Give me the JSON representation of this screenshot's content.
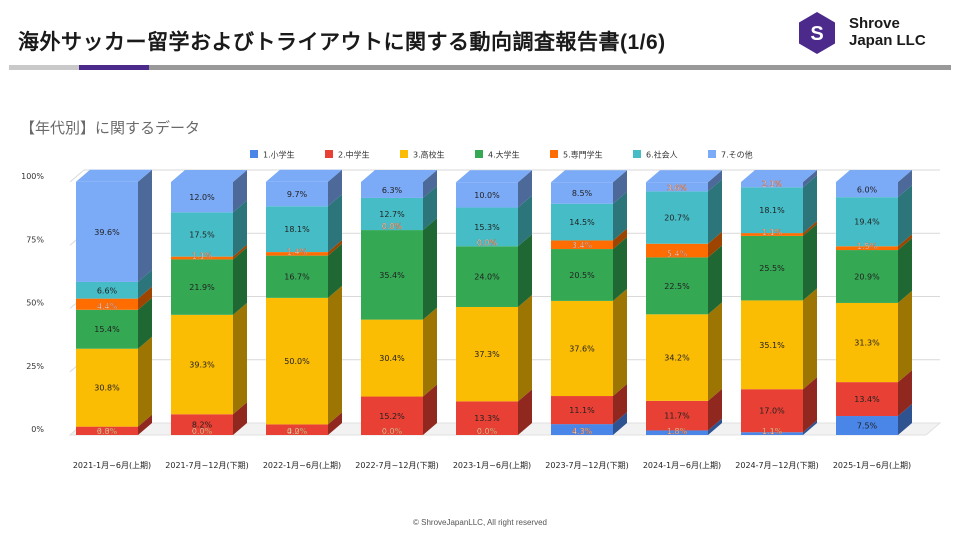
{
  "header": {
    "title": "海外サッカー留学およびトライアウトに関する動向調査報告書(1/6)",
    "logo_letter": "S",
    "logo_line1": "Shrove",
    "logo_line2": "Japan LLC"
  },
  "section_title": "【年代別】に関するデータ",
  "footer": "© ShroveJapanLLC, All right reserved",
  "colors": {
    "brand": "#4b2a8c",
    "rule_gray": "#c9c9c9",
    "rule_dark": "#999999",
    "grid": "#d9d9d9"
  },
  "chart_data": {
    "type": "bar",
    "stacked": true,
    "three_d": true,
    "categories": [
      "2021-1月~6月(上期)",
      "2021-7月~12月(下期)",
      "2022-1月~6月(上期)",
      "2022-7月~12月(下期)",
      "2023-1月~6月(上期)",
      "2023-7月~12月(下期)",
      "2024-1月~6月(上期)",
      "2024-7月~12月(下期)",
      "2025-1月~6月(上期)"
    ],
    "yticks": [
      "0%",
      "25%",
      "50%",
      "75%",
      "100%"
    ],
    "ylim": [
      0,
      100
    ],
    "legend_position": "top",
    "series": [
      {
        "name": "1.小学生",
        "color": "#4a86e8",
        "labels": [
          "0.0%",
          "0.0%",
          "0.0%",
          "0.0%",
          "0.0%",
          "4.3%",
          "1.8%",
          "1.1%",
          "7.5%"
        ],
        "values": [
          0.0,
          0.0,
          0.0,
          0.0,
          0.0,
          4.3,
          1.8,
          1.1,
          7.5
        ]
      },
      {
        "name": "2.中学生",
        "color": "#e84034",
        "labels": [
          "3.3%",
          "8.2%",
          "4.2%",
          "15.2%",
          "13.3%",
          "11.1%",
          "11.7%",
          "17.0%",
          "13.4%"
        ],
        "values": [
          3.3,
          8.2,
          4.2,
          15.2,
          13.3,
          11.1,
          11.7,
          17.0,
          13.4
        ]
      },
      {
        "name": "3.高校生",
        "color": "#fbbc04",
        "labels": [
          "30.8%",
          "39.3%",
          "50.0%",
          "30.4%",
          "37.3%",
          "37.6%",
          "34.2%",
          "35.1%",
          "31.3%"
        ],
        "values": [
          30.8,
          39.3,
          50.0,
          30.4,
          37.3,
          37.6,
          34.2,
          35.1,
          31.3
        ]
      },
      {
        "name": "4.大学生",
        "color": "#34a853",
        "labels": [
          "15.4%",
          "21.9%",
          "16.7%",
          "35.4%",
          "24.0%",
          "20.5%",
          "22.5%",
          "25.5%",
          "20.9%"
        ],
        "values": [
          15.4,
          21.9,
          16.7,
          35.4,
          24.0,
          20.5,
          22.5,
          25.5,
          20.9
        ]
      },
      {
        "name": "5.専門学生",
        "color": "#ff6d01",
        "labels": [
          "4.4%",
          "1.1%",
          "1.4%",
          "0.0%",
          "0.0%",
          "3.4%",
          "5.4%",
          "1.1%",
          "1.5%"
        ],
        "values": [
          4.4,
          1.1,
          1.4,
          0.0,
          0.0,
          3.4,
          5.4,
          1.1,
          1.5
        ]
      },
      {
        "name": "6.社会人",
        "color": "#46bdc6",
        "labels": [
          "6.6%",
          "17.5%",
          "18.1%",
          "12.7%",
          "15.3%",
          "14.5%",
          "20.7%",
          "18.1%",
          "19.4%"
        ],
        "values": [
          6.6,
          17.5,
          18.1,
          12.7,
          15.3,
          14.5,
          20.7,
          18.1,
          19.4
        ]
      },
      {
        "name": "7.その他",
        "color": "#7baaf7",
        "labels": [
          "39.6%",
          "12.0%",
          "9.7%",
          "6.3%",
          "10.0%",
          "8.5%",
          "3.6%",
          "2.1%",
          "6.0%"
        ],
        "values": [
          39.6,
          12.0,
          9.7,
          6.3,
          10.0,
          8.5,
          3.6,
          2.1,
          6.0
        ]
      }
    ]
  }
}
